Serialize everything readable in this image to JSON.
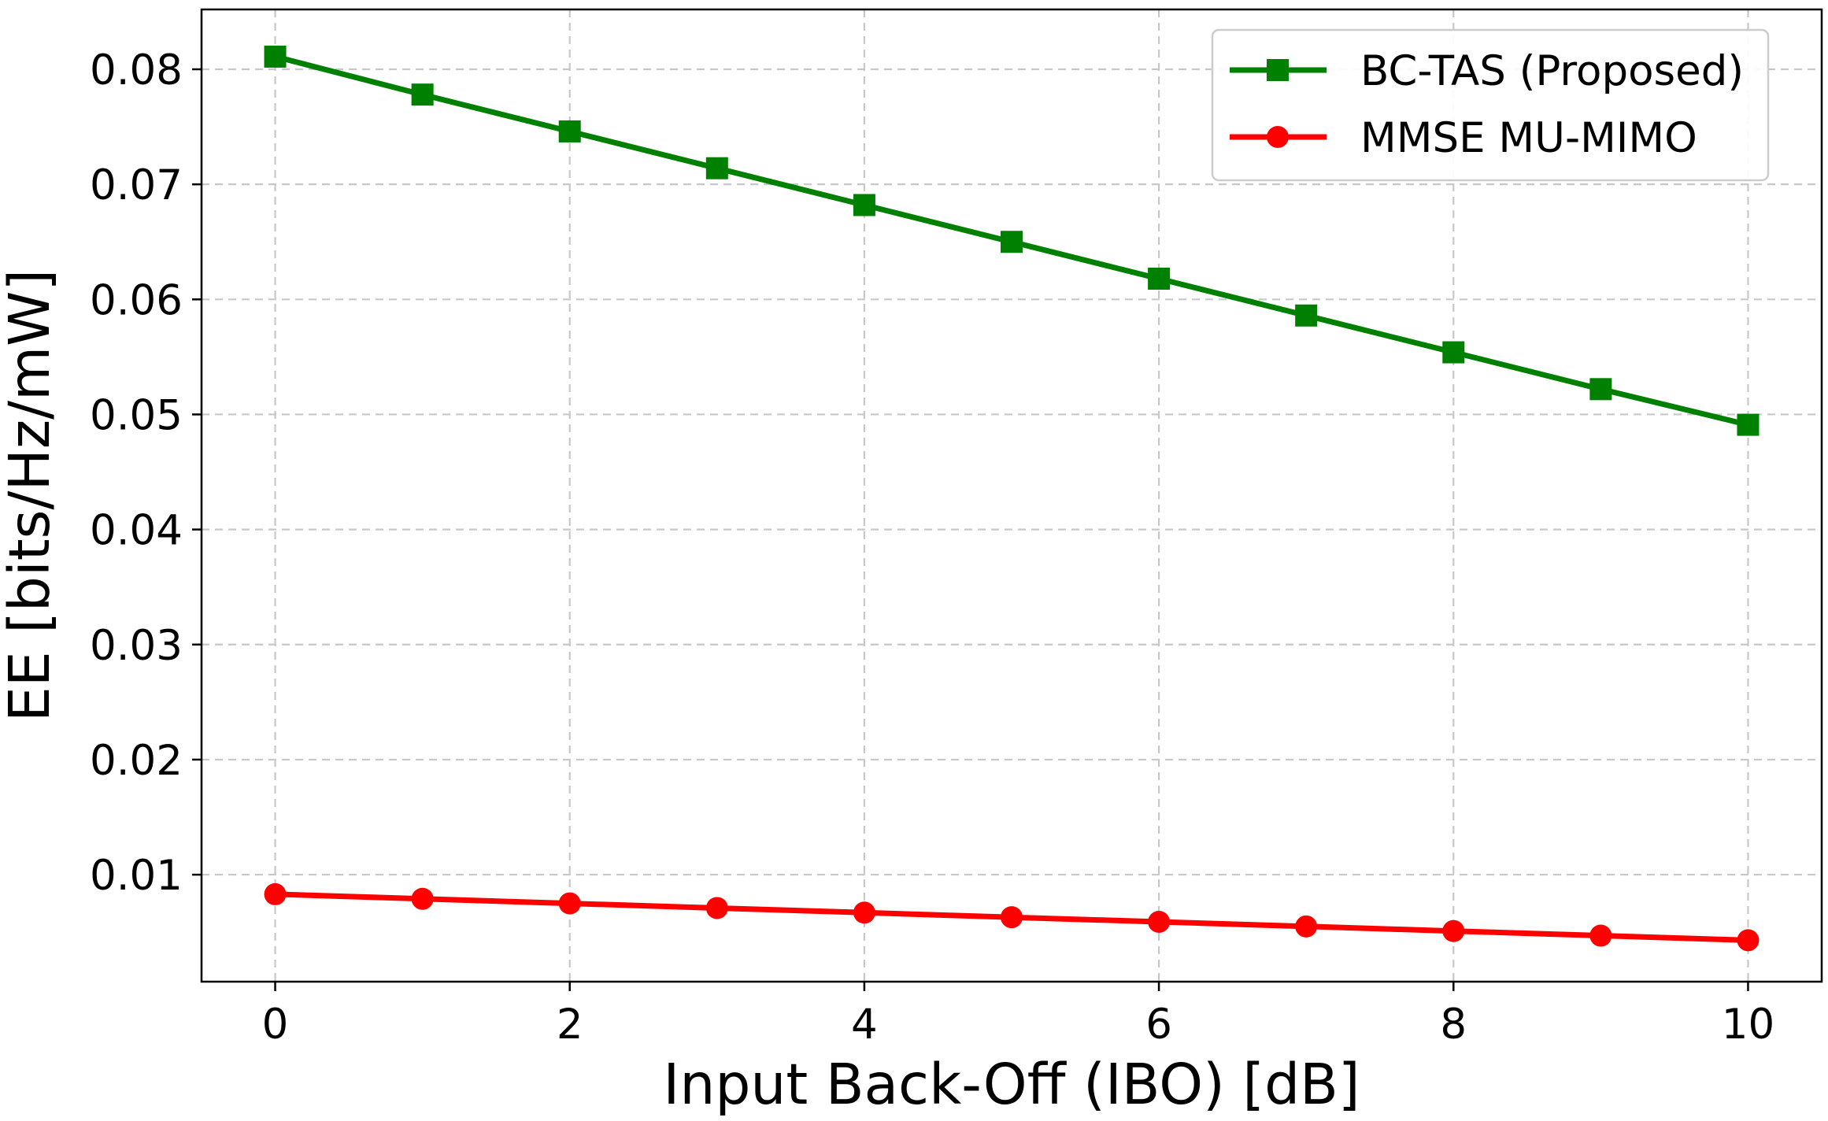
{
  "chart_data": {
    "type": "line",
    "xlabel": "Input Back-Off (IBO) [dB]",
    "ylabel": "EE [bits/Hz/mW]",
    "xlim": [
      -0.5,
      10.5
    ],
    "ylim": [
      0.0007,
      0.0852
    ],
    "x_ticks": [
      0,
      2,
      4,
      6,
      8,
      10
    ],
    "x_tick_labels": [
      "0",
      "2",
      "4",
      "6",
      "8",
      "10"
    ],
    "y_ticks": [
      0.01,
      0.02,
      0.03,
      0.04,
      0.05,
      0.06,
      0.07,
      0.08
    ],
    "y_tick_labels": [
      "0.01",
      "0.02",
      "0.03",
      "0.04",
      "0.05",
      "0.06",
      "0.07",
      "0.08"
    ],
    "grid": true,
    "legend_position": "top-right",
    "x": [
      0,
      1,
      2,
      3,
      4,
      5,
      6,
      7,
      8,
      9,
      10
    ],
    "series": [
      {
        "name": "BC-TAS (Proposed)",
        "color": "#008000",
        "marker": "square",
        "values": [
          0.0811,
          0.0778,
          0.0746,
          0.0714,
          0.0682,
          0.065,
          0.0618,
          0.0586,
          0.0554,
          0.0522,
          0.0491
        ]
      },
      {
        "name": "MMSE MU-MIMO",
        "color": "#ff0000",
        "marker": "circle",
        "values": [
          0.0083,
          0.0079,
          0.0075,
          0.0071,
          0.0067,
          0.0063,
          0.0059,
          0.0055,
          0.0051,
          0.0047,
          0.0043
        ]
      }
    ]
  }
}
